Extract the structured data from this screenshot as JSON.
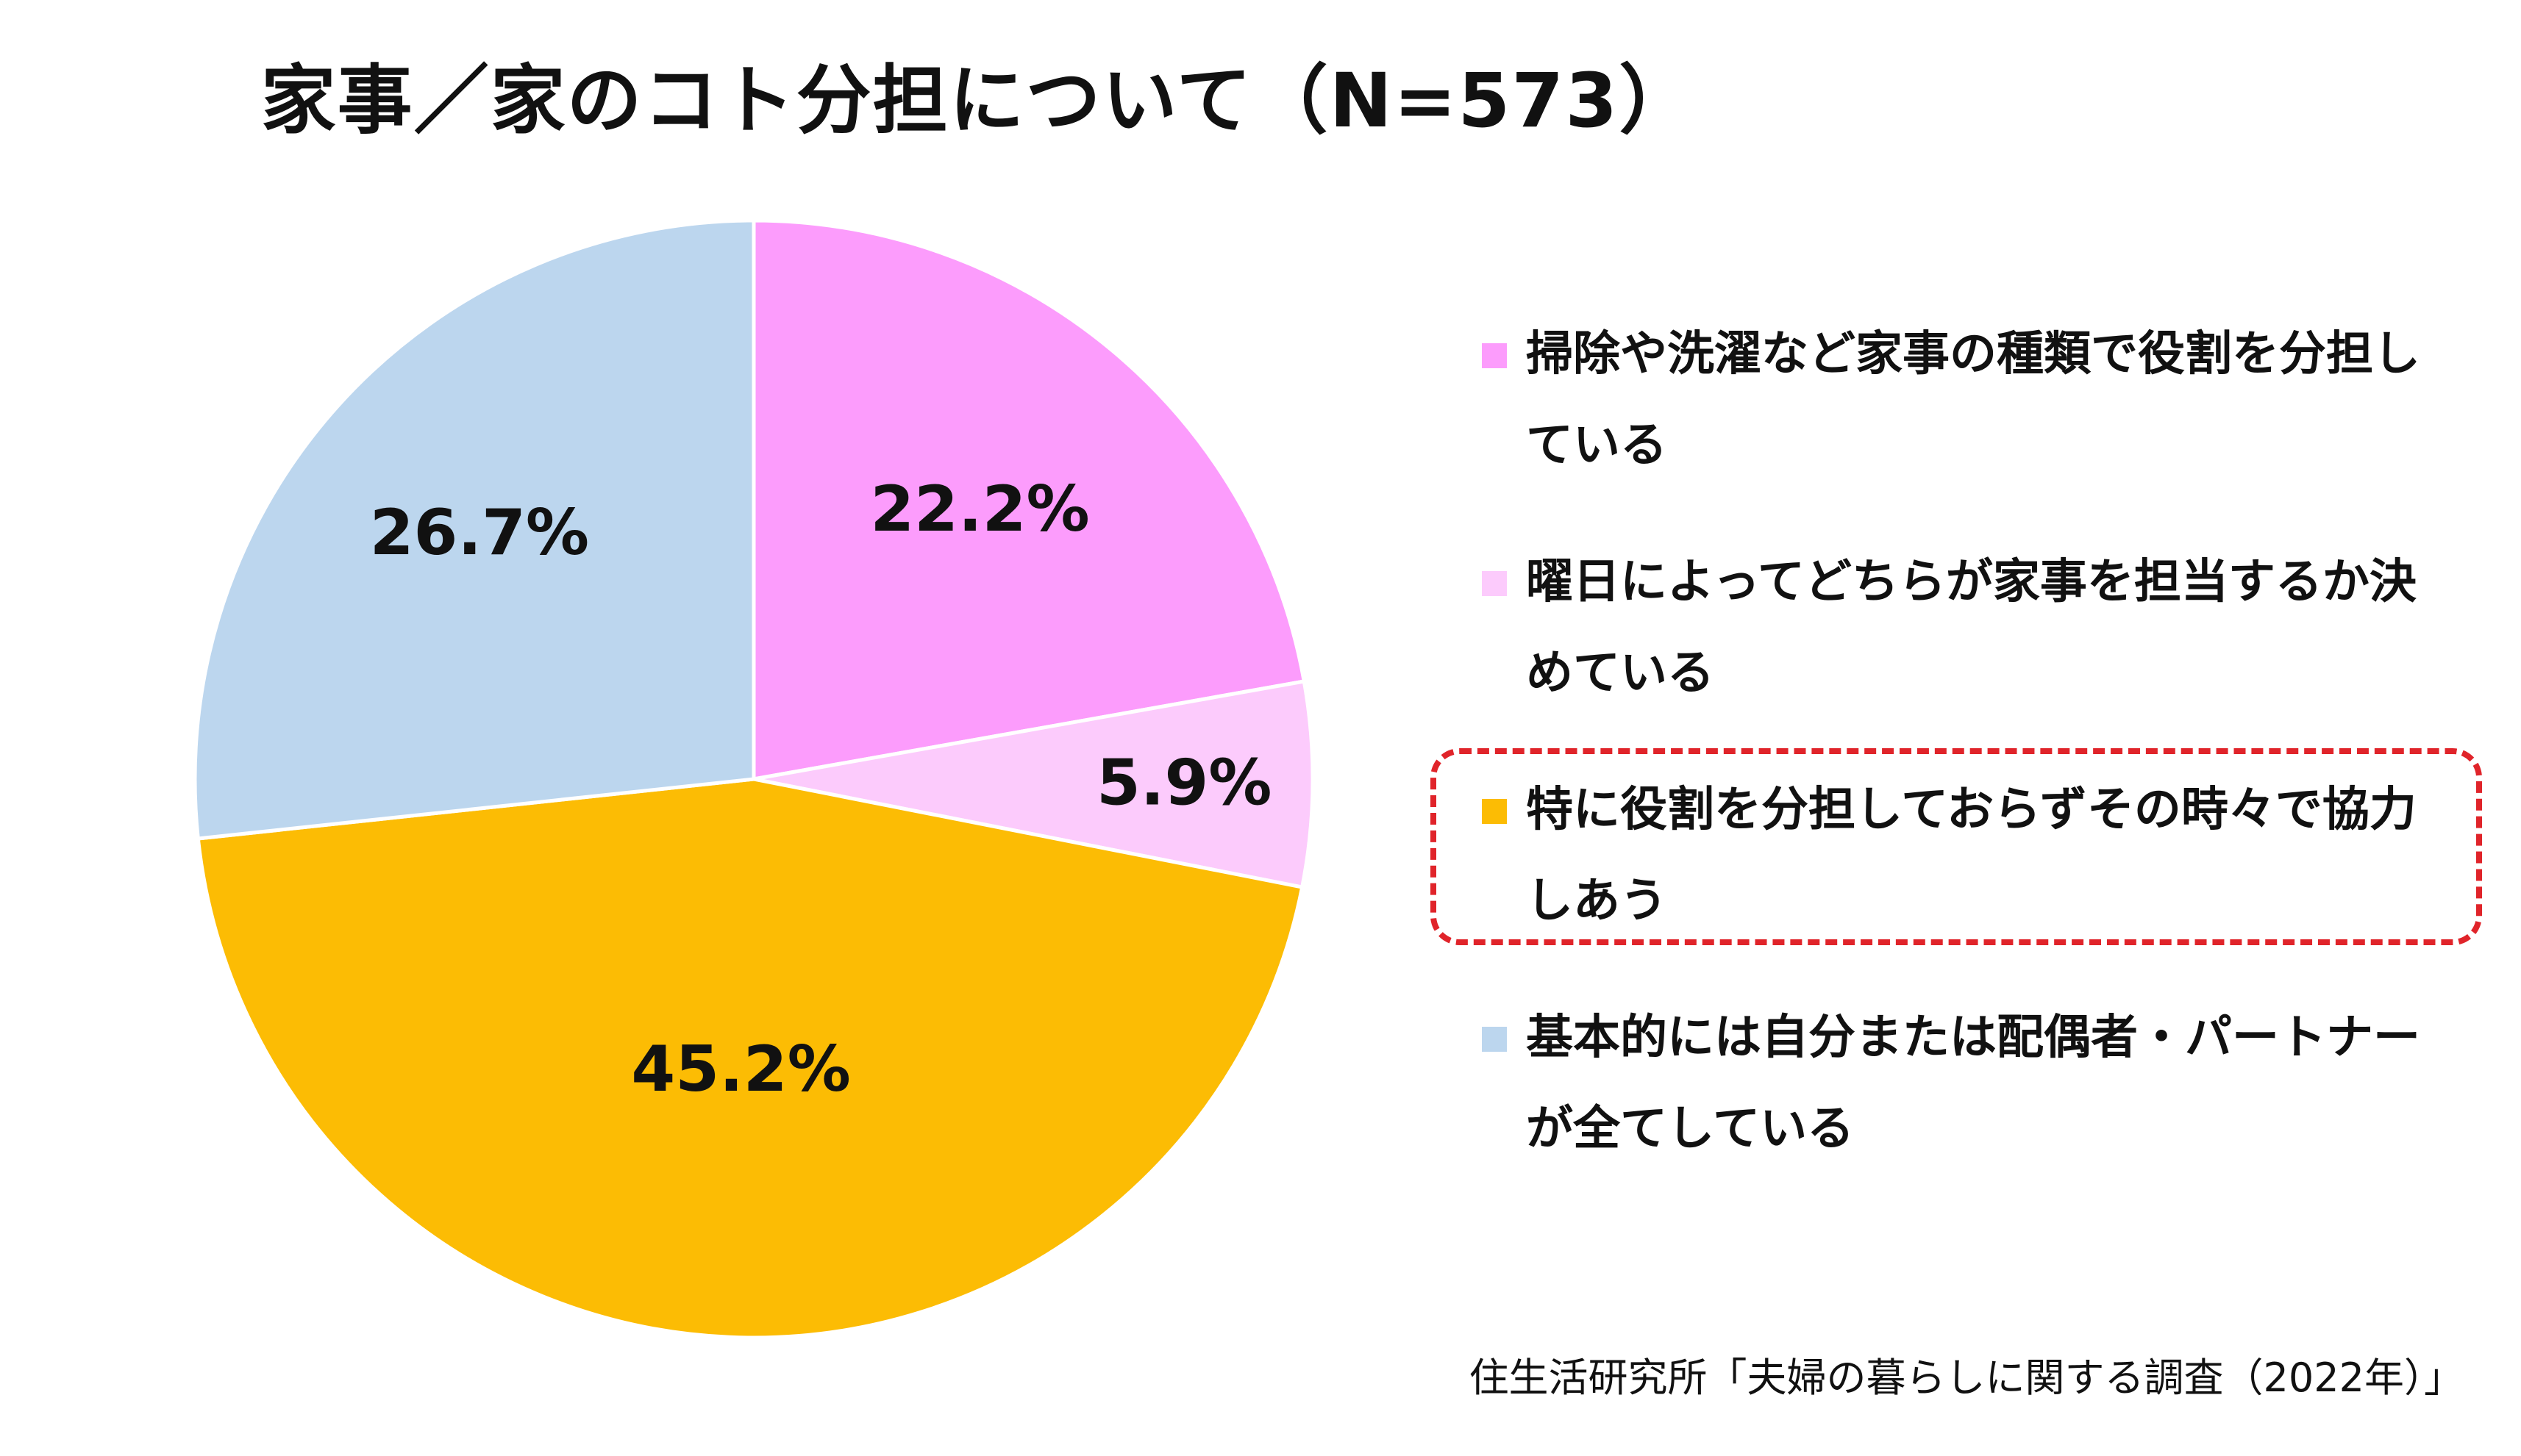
{
  "chart_data": {
    "type": "pie",
    "title": "家事／家のコト分担について（N=573）",
    "start_angle_deg": 0,
    "direction": "clockwise",
    "slices": [
      {
        "label": "掃除や洗濯など家事の種類で役割を分担している",
        "value": 22.2,
        "display": "22.2%",
        "color": "#fc9cfc"
      },
      {
        "label": "曜日によってどちらが家事を担当するか決めている",
        "value": 5.9,
        "display": "5.9%",
        "color": "#fccbfc"
      },
      {
        "label": "特に役割を分担しておらずその時々で協力しあう",
        "value": 45.2,
        "display": "45.2%",
        "color": "#fcbc04"
      },
      {
        "label": "基本的には自分または配偶者・パートナーが全てしている",
        "value": 26.7,
        "display": "26.7%",
        "color": "#bcd6ee"
      }
    ],
    "legend_position": "right",
    "highlighted_legend_entry": "特に役割を分担しておらずその時々で協力しあう",
    "highlight_color": "#e0242a"
  },
  "source": "住生活研究所「夫婦の暮らしに関する調査（2022年）」"
}
